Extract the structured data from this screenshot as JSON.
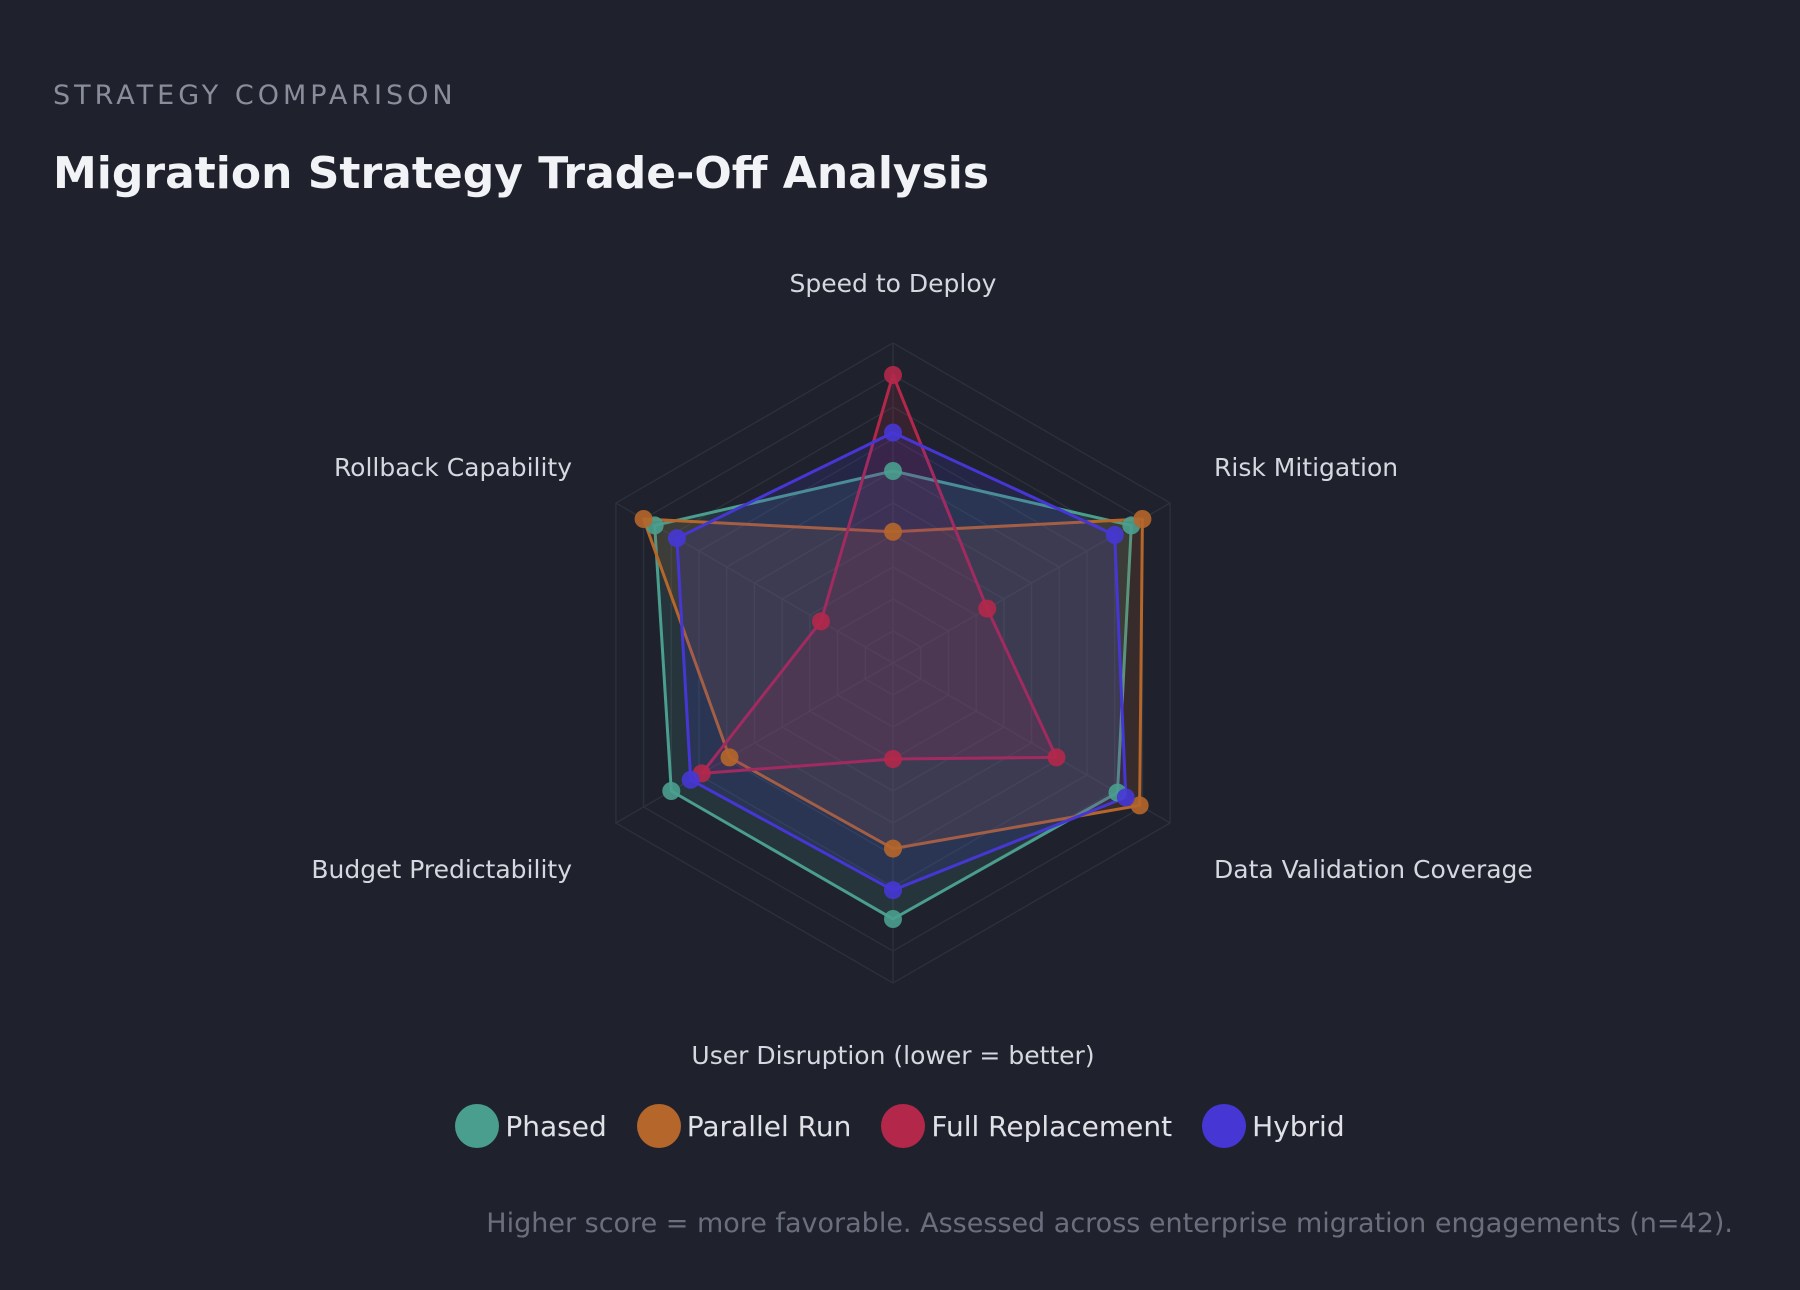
{
  "header": {
    "eyebrow": "STRATEGY COMPARISON",
    "title": "Migration Strategy Trade-Off Analysis"
  },
  "footnote": "Higher score = more favorable. Assessed across enterprise migration engagements (n=42).",
  "chart_data": {
    "type": "radar",
    "axes": [
      "Speed to Deploy",
      "Risk Mitigation",
      "Data Validation Coverage",
      "User Disruption (lower = better)",
      "Budget Predictability",
      "Rollback Capability"
    ],
    "range": [
      0,
      10
    ],
    "rings": 10,
    "grid": true,
    "legend_position": "bottom-center",
    "series": [
      {
        "name": "Phased",
        "color": "#4a9e8e",
        "values": [
          6.0,
          8.6,
          8.1,
          8.0,
          8.0,
          8.6
        ]
      },
      {
        "name": "Parallel Run",
        "color": "#b5662a",
        "values": [
          4.1,
          9.0,
          8.9,
          5.8,
          5.9,
          9.0
        ]
      },
      {
        "name": "Full Replacement",
        "color": "#b3284a",
        "values": [
          9.0,
          3.4,
          5.9,
          3.0,
          6.9,
          2.6
        ]
      },
      {
        "name": "Hybrid",
        "color": "#4637d4",
        "values": [
          7.2,
          8.0,
          8.4,
          7.1,
          7.3,
          7.8
        ]
      }
    ]
  }
}
